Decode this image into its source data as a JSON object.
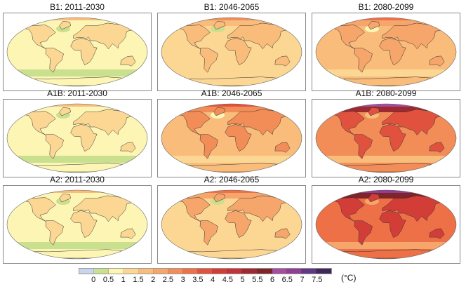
{
  "colorbar": {
    "colors": [
      "#c9d5ec",
      "#c9e08f",
      "#fdf5b4",
      "#fcd793",
      "#f9bc7a",
      "#f6a56b",
      "#f28d58",
      "#ee7047",
      "#e0523d",
      "#d23e37",
      "#c3313a",
      "#9c2a30",
      "#7f2428",
      "#a64d9e",
      "#8f3e94",
      "#603884",
      "#3e2858"
    ],
    "ticks": [
      "0",
      "0.5",
      "1",
      "1.5",
      "2",
      "2.5",
      "3",
      "3.5",
      "4",
      "4.5",
      "5",
      "5.5",
      "6",
      "6.5",
      "7",
      "7.5"
    ],
    "unit": "(°C)"
  },
  "panels": [
    {
      "title": "B1: 2011-2030",
      "ocean": 2,
      "land": 3,
      "arctic": 4,
      "southern": 1
    },
    {
      "title": "B1: 2046-2065",
      "ocean": 3,
      "land": 4,
      "arctic": 6,
      "southern": 3
    },
    {
      "title": "B1: 2080-2099",
      "ocean": 4,
      "land": 5,
      "arctic": 7,
      "southern": 3
    },
    {
      "title": "A1B: 2011-2030",
      "ocean": 2,
      "land": 3,
      "arctic": 4,
      "southern": 1
    },
    {
      "title": "A1B: 2046-2065",
      "ocean": 4,
      "land": 6,
      "arctic": 8,
      "southern": 3
    },
    {
      "title": "A1B: 2080-2099",
      "ocean": 6,
      "land": 8,
      "arctic": 13,
      "southern": 4
    },
    {
      "title": "A2: 2011-2030",
      "ocean": 2,
      "land": 3,
      "arctic": 4,
      "southern": 1
    },
    {
      "title": "A2: 2046-2065",
      "ocean": 3,
      "land": 5,
      "arctic": 7,
      "southern": 3
    },
    {
      "title": "A2: 2080-2099",
      "ocean": 7,
      "land": 9,
      "arctic": 14,
      "southern": 5
    }
  ]
}
